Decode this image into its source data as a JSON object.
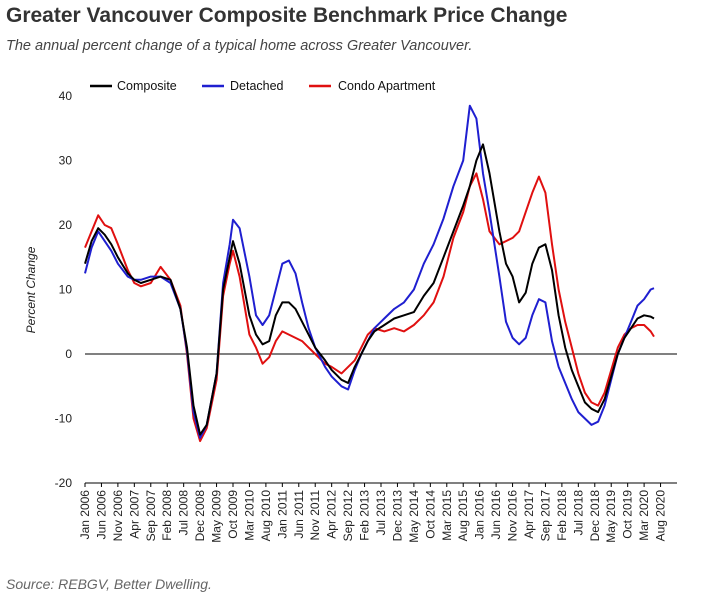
{
  "header": {
    "title": "Greater Vancouver Composite Benchmark Price Change",
    "subtitle": "The annual percent change of a typical home across Greater Vancouver."
  },
  "footer": {
    "source": "Source: REBGV, Better Dwelling."
  },
  "colors": {
    "composite": "#000000",
    "detached": "#1f1fd0",
    "condo": "#e01010",
    "axis": "#000000"
  },
  "chart_data": {
    "type": "line",
    "title": "Greater Vancouver Composite Benchmark Price Change",
    "xlabel": "",
    "ylabel": "Percent Change",
    "ylim": [
      -20,
      40
    ],
    "yticks": [
      -20,
      -10,
      0,
      10,
      20,
      30,
      40
    ],
    "xlim": [
      "2006-01",
      "2021-01"
    ],
    "x_tick_labels": [
      "Jan 2006",
      "Jun 2006",
      "Nov 2006",
      "Apr 2007",
      "Sep 2007",
      "Feb 2008",
      "Jul 2008",
      "Dec 2008",
      "May 2009",
      "Oct 2009",
      "Mar 2010",
      "Aug 2010",
      "Jan 2011",
      "Jun 2011",
      "Nov 2011",
      "Apr 2012",
      "Sep 2012",
      "Feb 2013",
      "Jul 2013",
      "Dec 2013",
      "May 2014",
      "Oct 2014",
      "Mar 2015",
      "Aug 2015",
      "Jan 2016",
      "Jun 2016",
      "Nov 2016",
      "Apr 2017",
      "Sep 2017",
      "Feb 2018",
      "Jul 2018",
      "Dec 2018",
      "May 2019",
      "Oct 2019",
      "Mar 2020",
      "Aug 2020"
    ],
    "grid": false,
    "legend_position": "top-left",
    "series": [
      {
        "name": "Composite",
        "color": "#000000",
        "points": [
          [
            "2006-01",
            14
          ],
          [
            "2006-03",
            17.5
          ],
          [
            "2006-05",
            19.5
          ],
          [
            "2006-07",
            18.5
          ],
          [
            "2006-09",
            17
          ],
          [
            "2006-11",
            15
          ],
          [
            "2007-02",
            12.5
          ],
          [
            "2007-04",
            11.5
          ],
          [
            "2007-06",
            11
          ],
          [
            "2007-09",
            11.5
          ],
          [
            "2007-12",
            12
          ],
          [
            "2008-03",
            11.5
          ],
          [
            "2008-06",
            7
          ],
          [
            "2008-08",
            1
          ],
          [
            "2008-10",
            -8
          ],
          [
            "2008-12",
            -12.5
          ],
          [
            "2009-02",
            -11
          ],
          [
            "2009-05",
            -3
          ],
          [
            "2009-07",
            10
          ],
          [
            "2009-09",
            15
          ],
          [
            "2009-10",
            17.5
          ],
          [
            "2009-12",
            14
          ],
          [
            "2010-03",
            6
          ],
          [
            "2010-05",
            3
          ],
          [
            "2010-07",
            1.5
          ],
          [
            "2010-09",
            2
          ],
          [
            "2010-11",
            6
          ],
          [
            "2011-01",
            8
          ],
          [
            "2011-03",
            8
          ],
          [
            "2011-05",
            7
          ],
          [
            "2011-07",
            5
          ],
          [
            "2011-09",
            3
          ],
          [
            "2011-11",
            1
          ],
          [
            "2012-02",
            -1
          ],
          [
            "2012-04",
            -2.5
          ],
          [
            "2012-07",
            -4
          ],
          [
            "2012-09",
            -4.5
          ],
          [
            "2012-11",
            -2
          ],
          [
            "2013-01",
            0
          ],
          [
            "2013-03",
            2
          ],
          [
            "2013-05",
            3.5
          ],
          [
            "2013-08",
            4.5
          ],
          [
            "2013-11",
            5.5
          ],
          [
            "2014-02",
            6
          ],
          [
            "2014-05",
            6.5
          ],
          [
            "2014-08",
            9
          ],
          [
            "2014-11",
            11
          ],
          [
            "2015-02",
            15
          ],
          [
            "2015-05",
            19
          ],
          [
            "2015-08",
            23
          ],
          [
            "2015-10",
            26
          ],
          [
            "2015-12",
            30
          ],
          [
            "2016-02",
            32.5
          ],
          [
            "2016-04",
            28
          ],
          [
            "2016-07",
            19
          ],
          [
            "2016-09",
            14
          ],
          [
            "2016-11",
            12
          ],
          [
            "2017-01",
            8
          ],
          [
            "2017-03",
            9.5
          ],
          [
            "2017-05",
            14
          ],
          [
            "2017-07",
            16.5
          ],
          [
            "2017-09",
            17
          ],
          [
            "2017-11",
            13
          ],
          [
            "2018-01",
            6
          ],
          [
            "2018-03",
            1
          ],
          [
            "2018-05",
            -2.5
          ],
          [
            "2018-07",
            -5
          ],
          [
            "2018-09",
            -7.5
          ],
          [
            "2018-11",
            -8.5
          ],
          [
            "2019-01",
            -9
          ],
          [
            "2019-03",
            -7
          ],
          [
            "2019-05",
            -3.5
          ],
          [
            "2019-07",
            0
          ],
          [
            "2019-09",
            2.5
          ],
          [
            "2019-11",
            4
          ],
          [
            "2020-01",
            5.5
          ],
          [
            "2020-03",
            6
          ],
          [
            "2020-05",
            5.8
          ],
          [
            "2020-06",
            5.5
          ]
        ]
      },
      {
        "name": "Detached",
        "color": "#1f1fd0",
        "points": [
          [
            "2006-01",
            12.5
          ],
          [
            "2006-03",
            16.5
          ],
          [
            "2006-05",
            19
          ],
          [
            "2006-07",
            17.5
          ],
          [
            "2006-09",
            16
          ],
          [
            "2006-11",
            14
          ],
          [
            "2007-02",
            12
          ],
          [
            "2007-04",
            11.5
          ],
          [
            "2007-06",
            11.5
          ],
          [
            "2007-09",
            12
          ],
          [
            "2007-12",
            12
          ],
          [
            "2008-03",
            11
          ],
          [
            "2008-06",
            7
          ],
          [
            "2008-08",
            0.5
          ],
          [
            "2008-10",
            -9
          ],
          [
            "2008-12",
            -13
          ],
          [
            "2009-02",
            -11
          ],
          [
            "2009-05",
            -3
          ],
          [
            "2009-07",
            11
          ],
          [
            "2009-09",
            17
          ],
          [
            "2009-10",
            20.8
          ],
          [
            "2009-12",
            19.5
          ],
          [
            "2010-03",
            12
          ],
          [
            "2010-05",
            6
          ],
          [
            "2010-07",
            4.5
          ],
          [
            "2010-09",
            6
          ],
          [
            "2010-11",
            10
          ],
          [
            "2011-01",
            14
          ],
          [
            "2011-03",
            14.5
          ],
          [
            "2011-05",
            12.5
          ],
          [
            "2011-07",
            8
          ],
          [
            "2011-09",
            4
          ],
          [
            "2011-11",
            1
          ],
          [
            "2012-02",
            -2
          ],
          [
            "2012-04",
            -3.5
          ],
          [
            "2012-07",
            -5
          ],
          [
            "2012-09",
            -5.5
          ],
          [
            "2012-11",
            -2.5
          ],
          [
            "2013-01",
            0
          ],
          [
            "2013-03",
            2
          ],
          [
            "2013-05",
            4
          ],
          [
            "2013-08",
            5.5
          ],
          [
            "2013-11",
            7
          ],
          [
            "2014-02",
            8
          ],
          [
            "2014-05",
            10
          ],
          [
            "2014-08",
            14
          ],
          [
            "2014-11",
            17
          ],
          [
            "2015-02",
            21
          ],
          [
            "2015-05",
            26
          ],
          [
            "2015-08",
            30
          ],
          [
            "2015-10",
            38.5
          ],
          [
            "2015-12",
            36.5
          ],
          [
            "2016-02",
            28
          ],
          [
            "2016-04",
            22
          ],
          [
            "2016-07",
            12
          ],
          [
            "2016-09",
            5
          ],
          [
            "2016-11",
            2.5
          ],
          [
            "2017-01",
            1.5
          ],
          [
            "2017-03",
            2.5
          ],
          [
            "2017-05",
            6
          ],
          [
            "2017-07",
            8.5
          ],
          [
            "2017-09",
            8
          ],
          [
            "2017-11",
            2
          ],
          [
            "2018-01",
            -2
          ],
          [
            "2018-03",
            -4.5
          ],
          [
            "2018-05",
            -7
          ],
          [
            "2018-07",
            -9
          ],
          [
            "2018-09",
            -10
          ],
          [
            "2018-11",
            -11
          ],
          [
            "2019-01",
            -10.5
          ],
          [
            "2019-03",
            -8
          ],
          [
            "2019-05",
            -4
          ],
          [
            "2019-07",
            0
          ],
          [
            "2019-09",
            2.5
          ],
          [
            "2019-11",
            5
          ],
          [
            "2020-01",
            7.5
          ],
          [
            "2020-03",
            8.5
          ],
          [
            "2020-05",
            10
          ],
          [
            "2020-06",
            10.2
          ]
        ]
      },
      {
        "name": "Condo Apartment",
        "color": "#e01010",
        "points": [
          [
            "2006-01",
            16.5
          ],
          [
            "2006-03",
            19
          ],
          [
            "2006-05",
            21.5
          ],
          [
            "2006-07",
            20
          ],
          [
            "2006-09",
            19.5
          ],
          [
            "2006-11",
            17
          ],
          [
            "2007-02",
            13
          ],
          [
            "2007-04",
            11
          ],
          [
            "2007-06",
            10.5
          ],
          [
            "2007-09",
            11
          ],
          [
            "2007-12",
            13.5
          ],
          [
            "2008-03",
            11.5
          ],
          [
            "2008-06",
            7.5
          ],
          [
            "2008-08",
            0
          ],
          [
            "2008-10",
            -10
          ],
          [
            "2008-12",
            -13.5
          ],
          [
            "2009-02",
            -11.5
          ],
          [
            "2009-05",
            -4
          ],
          [
            "2009-07",
            9
          ],
          [
            "2009-09",
            14
          ],
          [
            "2009-10",
            16
          ],
          [
            "2009-12",
            12
          ],
          [
            "2010-03",
            3
          ],
          [
            "2010-05",
            1
          ],
          [
            "2010-07",
            -1.5
          ],
          [
            "2010-09",
            -0.5
          ],
          [
            "2010-11",
            2
          ],
          [
            "2011-01",
            3.5
          ],
          [
            "2011-03",
            3
          ],
          [
            "2011-05",
            2.5
          ],
          [
            "2011-07",
            2
          ],
          [
            "2011-09",
            1
          ],
          [
            "2011-11",
            0
          ],
          [
            "2012-02",
            -1.5
          ],
          [
            "2012-04",
            -2
          ],
          [
            "2012-07",
            -3
          ],
          [
            "2012-09",
            -2
          ],
          [
            "2012-11",
            -1
          ],
          [
            "2013-01",
            1
          ],
          [
            "2013-03",
            3
          ],
          [
            "2013-05",
            4
          ],
          [
            "2013-08",
            3.5
          ],
          [
            "2013-11",
            4
          ],
          [
            "2014-02",
            3.5
          ],
          [
            "2014-05",
            4.5
          ],
          [
            "2014-08",
            6
          ],
          [
            "2014-11",
            8
          ],
          [
            "2015-02",
            12
          ],
          [
            "2015-05",
            18
          ],
          [
            "2015-08",
            22
          ],
          [
            "2015-10",
            26
          ],
          [
            "2015-12",
            28
          ],
          [
            "2016-02",
            24
          ],
          [
            "2016-04",
            19
          ],
          [
            "2016-07",
            17
          ],
          [
            "2016-09",
            17.5
          ],
          [
            "2016-11",
            18
          ],
          [
            "2017-01",
            19
          ],
          [
            "2017-03",
            22
          ],
          [
            "2017-05",
            25
          ],
          [
            "2017-07",
            27.5
          ],
          [
            "2017-09",
            25
          ],
          [
            "2017-11",
            17
          ],
          [
            "2018-01",
            10
          ],
          [
            "2018-03",
            5
          ],
          [
            "2018-05",
            1
          ],
          [
            "2018-07",
            -3
          ],
          [
            "2018-09",
            -6
          ],
          [
            "2018-11",
            -7.5
          ],
          [
            "2019-01",
            -8
          ],
          [
            "2019-03",
            -6
          ],
          [
            "2019-05",
            -2.5
          ],
          [
            "2019-07",
            1
          ],
          [
            "2019-09",
            3
          ],
          [
            "2019-11",
            4
          ],
          [
            "2020-01",
            4.5
          ],
          [
            "2020-03",
            4.5
          ],
          [
            "2020-05",
            3.5
          ],
          [
            "2020-06",
            2.7
          ]
        ]
      }
    ]
  }
}
